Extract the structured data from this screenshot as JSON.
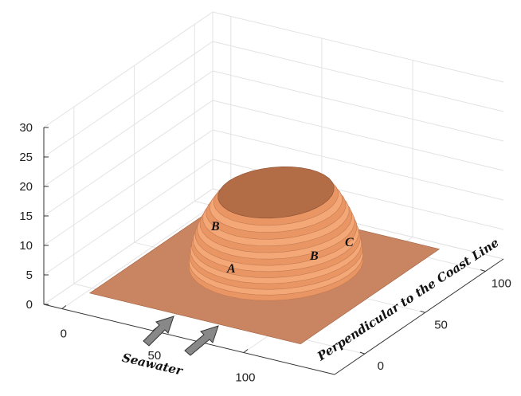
{
  "chart_data": {
    "type": "surface",
    "x_label": "Seawater",
    "y_label": "Perpendicular to the Coast Line",
    "xlim": [
      -10,
      150
    ],
    "xticks": [
      0,
      50,
      100
    ],
    "ylim": [
      -25,
      115
    ],
    "yticks": [
      0,
      50,
      100
    ],
    "zlim": [
      0,
      30
    ],
    "zticks": [
      0,
      5,
      10,
      15,
      20,
      25,
      30
    ],
    "grid": true,
    "annotations": [
      "A",
      "B",
      "B",
      "C"
    ]
  }
}
